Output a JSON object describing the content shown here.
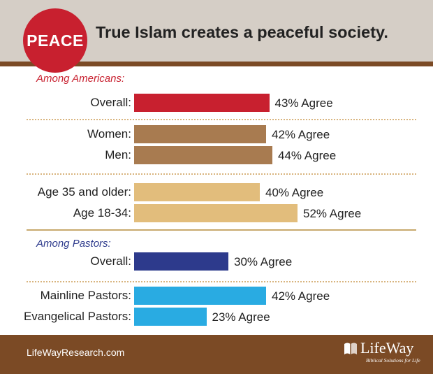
{
  "header": {
    "badge": "PEACE",
    "title": "True Islam creates a peaceful society."
  },
  "sections": {
    "americans": "Among Americans:",
    "pastors": "Among Pastors:"
  },
  "chart_data": {
    "type": "bar",
    "orientation": "horizontal",
    "xlim": [
      0,
      100
    ],
    "value_suffix": "% Agree",
    "groups": [
      {
        "section": "Among Americans:",
        "rows": [
          {
            "label": "Overall:",
            "value": 43,
            "color": "#c8202f"
          }
        ]
      },
      {
        "section": "Among Americans:",
        "rows": [
          {
            "label": "Women:",
            "value": 42,
            "color": "#a87b50"
          },
          {
            "label": "Men:",
            "value": 44,
            "color": "#a87b50"
          }
        ]
      },
      {
        "section": "Among Americans:",
        "rows": [
          {
            "label": "Age 35 and older:",
            "value": 40,
            "color": "#e2bd7c"
          },
          {
            "label": "Age 18-34:",
            "value": 52,
            "color": "#e2bd7c"
          }
        ]
      },
      {
        "section": "Among Pastors:",
        "rows": [
          {
            "label": "Overall:",
            "value": 30,
            "color": "#2d3a8c"
          }
        ]
      },
      {
        "section": "Among Pastors:",
        "rows": [
          {
            "label": "Mainline Pastors:",
            "value": 42,
            "color": "#29abe2"
          },
          {
            "label": "Evangelical Pastors:",
            "value": 23,
            "color": "#29abe2"
          }
        ]
      }
    ]
  },
  "footer": {
    "url": "LifeWayResearch.com",
    "logo_text": "LifeWay",
    "logo_tagline": "Biblical Solutions for Life",
    "logo_icon": "lifeway-logo-icon"
  }
}
